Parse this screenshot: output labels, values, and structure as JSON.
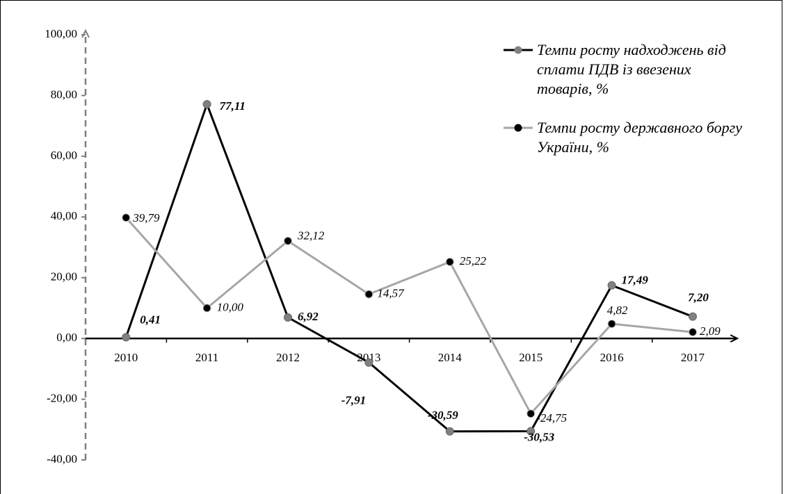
{
  "chart_data": {
    "type": "line",
    "categories": [
      "2010",
      "2011",
      "2012",
      "2013",
      "2014",
      "2015",
      "2016",
      "2017"
    ],
    "series": [
      {
        "name": "Темпи росту надходжень від сплати ПДВ із ввезених товарів, %",
        "color": "#000000",
        "marker_color": "#808080",
        "values": [
          0.41,
          77.11,
          6.92,
          -7.91,
          -30.59,
          -30.53,
          17.49,
          7.2
        ],
        "value_labels": [
          "0,41",
          "77,11",
          "6,92",
          "-7,91",
          "-30,59",
          "-30,53",
          "17,49",
          "7,20"
        ]
      },
      {
        "name": "Темпи росту державного боргу України, %",
        "color": "#a6a6a6",
        "marker_color": "#000000",
        "values": [
          39.79,
          10.0,
          32.12,
          14.57,
          25.22,
          -24.75,
          4.82,
          2.09
        ],
        "value_labels": [
          "39,79",
          "10,00",
          "32,12",
          "14,57",
          "25,22",
          "-24,75",
          "4,82",
          "2,09"
        ]
      }
    ],
    "ylim": [
      -40,
      100
    ],
    "yticks": [
      {
        "value": -40,
        "label": "-40,00"
      },
      {
        "value": -20,
        "label": "-20,00"
      },
      {
        "value": 0,
        "label": "0,00"
      },
      {
        "value": 20,
        "label": "20,00"
      },
      {
        "value": 40,
        "label": "40,00"
      },
      {
        "value": 60,
        "label": "60,00"
      },
      {
        "value": 80,
        "label": "80,00"
      },
      {
        "value": 100,
        "label": "100,00"
      }
    ],
    "legend": "top-right"
  }
}
